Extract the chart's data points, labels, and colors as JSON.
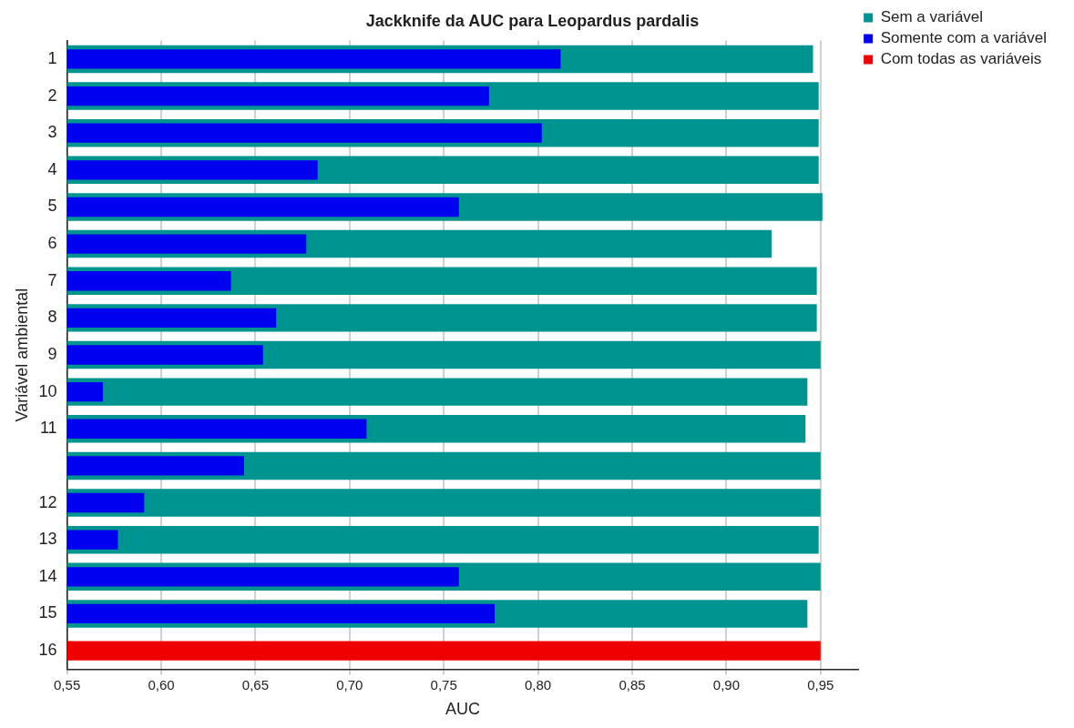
{
  "chart_data": {
    "type": "bar",
    "orientation": "horizontal",
    "title": "Jackknife da AUC para Leopardus pardalis",
    "xlabel": "AUC",
    "ylabel": "Variável ambiental",
    "categories": [
      "1",
      "2",
      "3",
      "4",
      "5",
      "6",
      "7",
      "8",
      "9",
      "10",
      "11",
      null,
      "12",
      "13",
      "14",
      "15",
      "16"
    ],
    "series": [
      {
        "name": "Sem a variável",
        "color": "#009490",
        "values": [
          0.946,
          0.949,
          0.949,
          0.949,
          0.951,
          0.924,
          0.948,
          0.948,
          0.95,
          0.943,
          0.942,
          0.95,
          0.95,
          0.949,
          0.95,
          0.943,
          null
        ]
      },
      {
        "name": "Somente com a variável",
        "color": "#0000f0",
        "values": [
          0.812,
          0.774,
          0.802,
          0.683,
          0.758,
          0.677,
          0.637,
          0.661,
          0.654,
          0.569,
          0.709,
          0.644,
          0.591,
          0.577,
          0.758,
          0.777,
          null
        ]
      },
      {
        "name": "Com todas as variáveis",
        "color": "#f00000",
        "values": [
          null,
          null,
          null,
          null,
          null,
          null,
          null,
          null,
          null,
          null,
          null,
          null,
          null,
          null,
          null,
          null,
          0.95
        ]
      }
    ],
    "xlim": [
      0.55,
      0.97
    ],
    "xticks": [
      {
        "value": 0.55,
        "label": "0,55"
      },
      {
        "value": 0.6,
        "label": "0,60"
      },
      {
        "value": 0.65,
        "label": "0,65"
      },
      {
        "value": 0.7,
        "label": "0,70"
      },
      {
        "value": 0.75,
        "label": "0,75"
      },
      {
        "value": 0.8,
        "label": "0,80"
      },
      {
        "value": 0.85,
        "label": "0,85"
      },
      {
        "value": 0.9,
        "label": "0,90"
      },
      {
        "value": 0.95,
        "label": "0,95"
      }
    ],
    "grid": "x",
    "legend": "top right"
  }
}
